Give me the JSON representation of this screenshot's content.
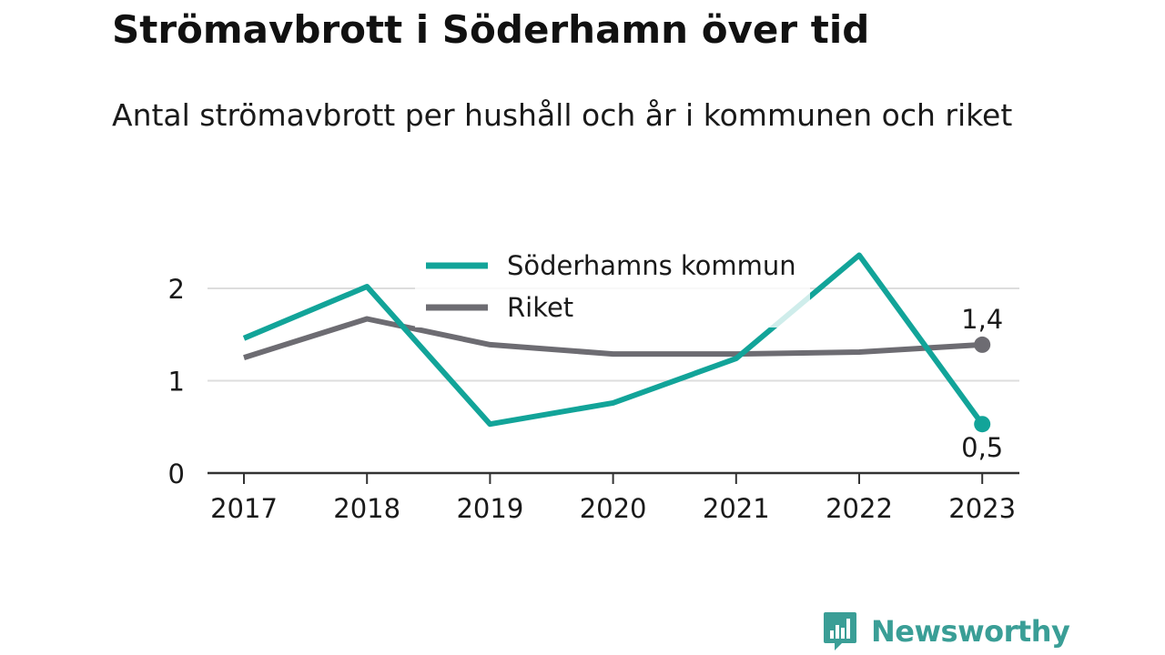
{
  "title": "Strömavbrott i Söderhamn över tid",
  "subtitle": "Antal strömavbrott per hushåll och år i kommunen och riket",
  "brand": "Newsworthy",
  "colors": {
    "kommun": "#12a499",
    "riket": "#6d6c72",
    "grid": "#dddddd",
    "axis": "#333333",
    "brand": "#3a9e96"
  },
  "chart_data": {
    "type": "line",
    "x": [
      "2017",
      "2018",
      "2019",
      "2020",
      "2021",
      "2022",
      "2023"
    ],
    "series": [
      {
        "name": "Söderhamns kommun",
        "values": [
          1.46,
          2.02,
          0.53,
          0.76,
          1.24,
          2.36,
          0.53
        ],
        "end_label": "0,5"
      },
      {
        "name": "Riket",
        "values": [
          1.25,
          1.67,
          1.39,
          1.29,
          1.29,
          1.31,
          1.39
        ],
        "end_label": "1,4"
      }
    ],
    "y_ticks": [
      "0",
      "1",
      "2"
    ],
    "ylim": [
      0,
      2.5
    ],
    "xlabel": "",
    "ylabel": "",
    "grid": true,
    "legend": "top-center"
  }
}
